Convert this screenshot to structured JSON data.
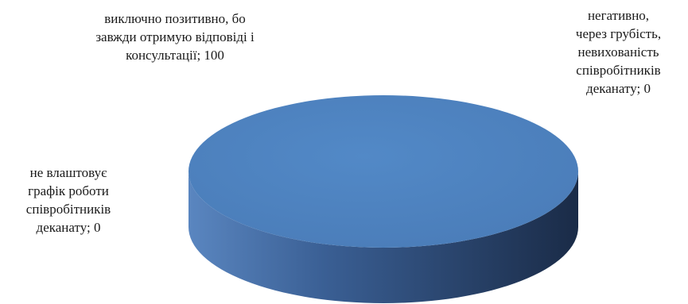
{
  "chart_data": {
    "type": "pie",
    "style": "3d",
    "title": "",
    "categories": [
      "виключно позитивно, бо завжди отримую відповіді і консультації",
      "негативно, через грубість, невихованість співробітників деканату",
      "не влаштовує графік роботи співробітників деканату"
    ],
    "values": [
      100,
      0,
      0
    ],
    "data_labels": [
      "виключно позитивно, бо\nзавжди отримую відповіді і\nконсультації; 100",
      "негативно,\nчерез грубість,\nневихованість\nспівробітників\nдеканату; 0",
      "не влаштовує\nграфік роботи\nспівробітників\nдеканату; 0"
    ],
    "colors": {
      "top": "#4f81bd",
      "side_light": "#3f68a0",
      "side_dark": "#1c2f4d"
    },
    "legend": "none"
  }
}
